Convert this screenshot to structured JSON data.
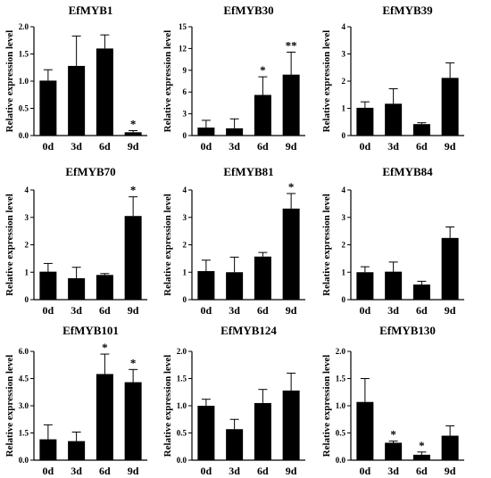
{
  "chart_data": [
    {
      "type": "bar",
      "title": "EfMYB1",
      "ylabel": "Relative expression level",
      "categories": [
        "0d",
        "3d",
        "6d",
        "9d"
      ],
      "values": [
        1.01,
        1.28,
        1.6,
        0.06
      ],
      "errors": [
        0.2,
        0.55,
        0.25,
        0.03
      ],
      "significance": [
        "",
        "",
        "",
        "*"
      ],
      "ylim": [
        0,
        2.0
      ],
      "yticks": [
        "0.0",
        "0.5",
        "1.0",
        "1.5",
        "2.0"
      ],
      "ytick_values": [
        0,
        0.5,
        1.0,
        1.5,
        2.0
      ],
      "grid": false
    },
    {
      "type": "bar",
      "title": "EfMYB30",
      "ylabel": "Relative expression level",
      "categories": [
        "0d",
        "3d",
        "6d",
        "9d"
      ],
      "values": [
        1.1,
        1.0,
        5.6,
        8.4
      ],
      "errors": [
        1.0,
        1.3,
        2.5,
        3.1
      ],
      "significance": [
        "",
        "",
        "*",
        "**"
      ],
      "ylim": [
        0,
        15
      ],
      "yticks": [
        "0",
        "3",
        "6",
        "9",
        "12",
        "15"
      ],
      "ytick_values": [
        0,
        3,
        6,
        9,
        12,
        15
      ],
      "grid": false
    },
    {
      "type": "bar",
      "title": "EfMYB39",
      "ylabel": "Relative expression level",
      "categories": [
        "0d",
        "3d",
        "6d",
        "9d"
      ],
      "values": [
        1.02,
        1.17,
        0.42,
        2.12
      ],
      "errors": [
        0.22,
        0.55,
        0.05,
        0.55
      ],
      "significance": [
        "",
        "",
        "",
        ""
      ],
      "ylim": [
        0,
        4
      ],
      "yticks": [
        "0",
        "1",
        "2",
        "3",
        "4"
      ],
      "ytick_values": [
        0,
        1,
        2,
        3,
        4
      ],
      "grid": false
    },
    {
      "type": "bar",
      "title": "EfMYB70",
      "ylabel": "Relative expression level",
      "categories": [
        "0d",
        "3d",
        "6d",
        "9d"
      ],
      "values": [
        1.02,
        0.78,
        0.9,
        3.05
      ],
      "errors": [
        0.3,
        0.4,
        0.05,
        0.7
      ],
      "significance": [
        "",
        "",
        "",
        "*"
      ],
      "ylim": [
        0,
        4
      ],
      "yticks": [
        "0",
        "1",
        "2",
        "3",
        "4"
      ],
      "ytick_values": [
        0,
        1,
        2,
        3,
        4
      ],
      "grid": false
    },
    {
      "type": "bar",
      "title": "EfMYB81",
      "ylabel": "Relative expression level",
      "categories": [
        "0d",
        "3d",
        "6d",
        "9d"
      ],
      "values": [
        1.04,
        1.0,
        1.57,
        3.32
      ],
      "errors": [
        0.4,
        0.55,
        0.15,
        0.55
      ],
      "significance": [
        "",
        "",
        "",
        "*"
      ],
      "ylim": [
        0,
        4
      ],
      "yticks": [
        "0",
        "1",
        "2",
        "3",
        "4"
      ],
      "ytick_values": [
        0,
        1,
        2,
        3,
        4
      ],
      "grid": false
    },
    {
      "type": "bar",
      "title": "EfMYB84",
      "ylabel": "Relative expression level",
      "categories": [
        "0d",
        "3d",
        "6d",
        "9d"
      ],
      "values": [
        1.0,
        1.02,
        0.55,
        2.25
      ],
      "errors": [
        0.2,
        0.35,
        0.12,
        0.4
      ],
      "significance": [
        "",
        "",
        "",
        ""
      ],
      "ylim": [
        0,
        4
      ],
      "yticks": [
        "0",
        "1",
        "2",
        "3",
        "4"
      ],
      "ytick_values": [
        0,
        1,
        2,
        3,
        4
      ],
      "grid": false
    },
    {
      "type": "bar",
      "title": "EfMYB101",
      "ylabel": "Relative expression level",
      "categories": [
        "0d",
        "3d",
        "6d",
        "9d"
      ],
      "values": [
        1.15,
        1.05,
        4.75,
        4.3
      ],
      "errors": [
        0.8,
        0.5,
        1.1,
        0.7
      ],
      "significance": [
        "",
        "",
        "*",
        "*"
      ],
      "ylim": [
        0,
        6.0
      ],
      "yticks": [
        "0.0",
        "1.5",
        "3.0",
        "4.5",
        "6.0"
      ],
      "ytick_values": [
        0,
        1.5,
        3.0,
        4.5,
        6.0
      ],
      "grid": false
    },
    {
      "type": "bar",
      "title": "EfMYB124",
      "ylabel": "Relative expression level",
      "categories": [
        "0d",
        "3d",
        "6d",
        "9d"
      ],
      "values": [
        1.0,
        0.57,
        1.05,
        1.28
      ],
      "errors": [
        0.12,
        0.18,
        0.25,
        0.32
      ],
      "significance": [
        "",
        "",
        "",
        ""
      ],
      "ylim": [
        0,
        2.0
      ],
      "yticks": [
        "0.0",
        "0.5",
        "1.0",
        "1.5",
        "2.0"
      ],
      "ytick_values": [
        0,
        0.5,
        1.0,
        1.5,
        2.0
      ],
      "grid": false
    },
    {
      "type": "bar",
      "title": "EfMYB130",
      "ylabel": "Relative expression level",
      "categories": [
        "0d",
        "3d",
        "6d",
        "9d"
      ],
      "values": [
        1.07,
        0.32,
        0.1,
        0.45
      ],
      "errors": [
        0.43,
        0.03,
        0.05,
        0.18
      ],
      "significance": [
        "",
        "*",
        "*",
        ""
      ],
      "ylim": [
        0,
        2.0
      ],
      "yticks": [
        "0.0",
        "0.5",
        "1.0",
        "1.5",
        "2.0"
      ],
      "ytick_values": [
        0,
        0.5,
        1.0,
        1.5,
        2.0
      ],
      "grid": false
    }
  ]
}
